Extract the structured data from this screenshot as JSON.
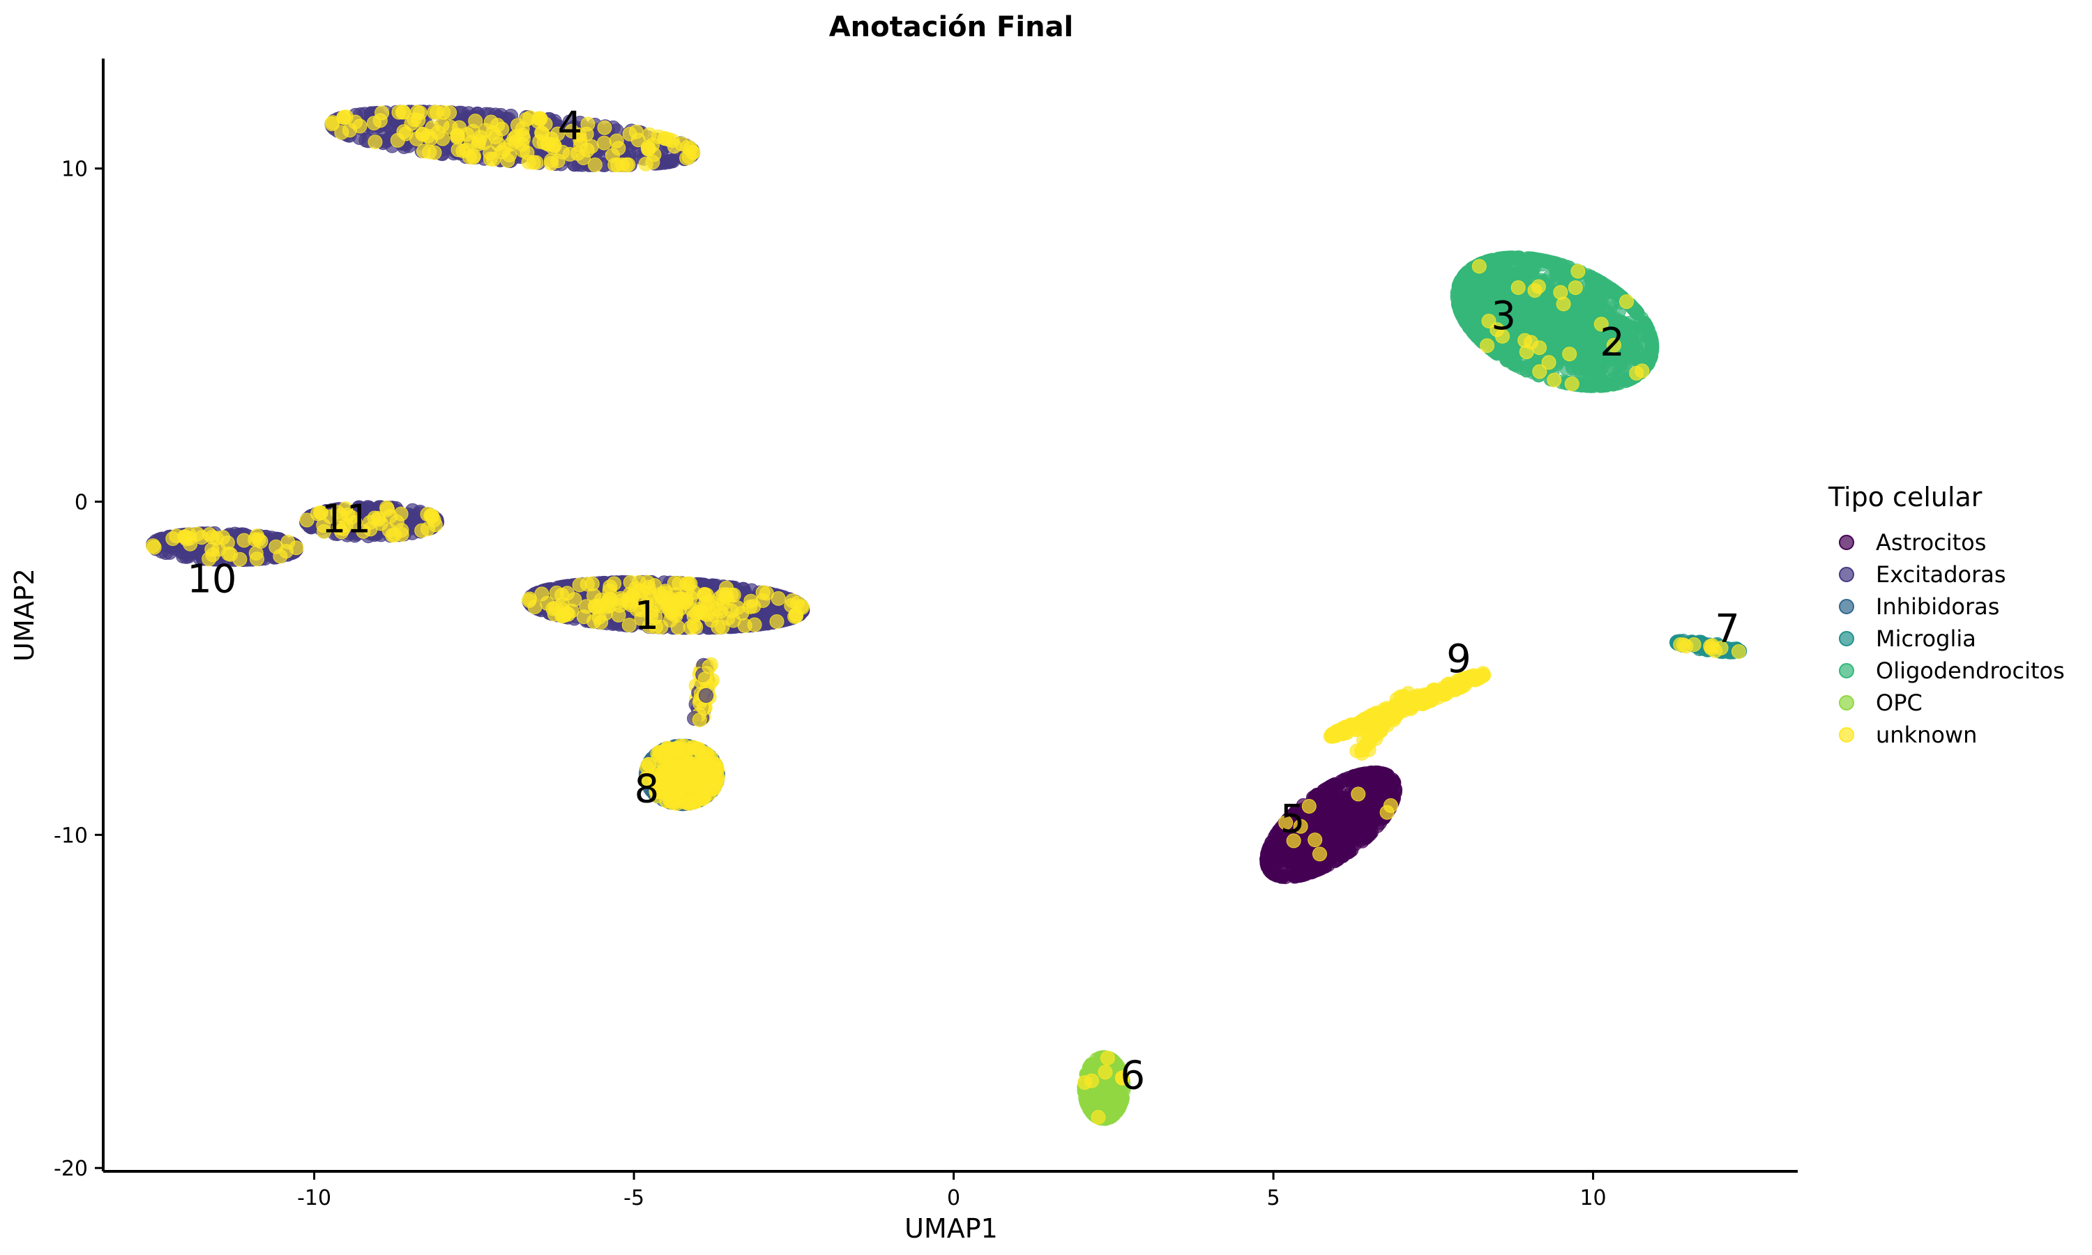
{
  "chart_data": {
    "type": "scatter",
    "title": "Anotación Final",
    "xlabel": "UMAP1",
    "ylabel": "UMAP2",
    "xlim": [
      -13.3,
      13.2
    ],
    "ylim": [
      -20.1,
      13.3
    ],
    "xticks": [
      -10,
      -5,
      0,
      5,
      10
    ],
    "xtick_labels": [
      "-10",
      "-5",
      "0",
      "5",
      "10"
    ],
    "yticks": [
      -20,
      -10,
      0,
      10
    ],
    "ytick_labels": [
      "-20",
      "-10",
      "0",
      "10"
    ],
    "grid": false,
    "legend": {
      "title": "Tipo celular",
      "placement": "right"
    },
    "series": [
      {
        "name": "Astrocitos",
        "color": "#440154"
      },
      {
        "name": "Excitadoras",
        "color": "#443983"
      },
      {
        "name": "Inhibidoras",
        "color": "#31688e"
      },
      {
        "name": "Microglia",
        "color": "#21918c"
      },
      {
        "name": "Oligodendrocitos",
        "color": "#35b779"
      },
      {
        "name": "OPC",
        "color": "#90d743"
      },
      {
        "name": "unknown",
        "color": "#fde725"
      }
    ],
    "clusters": [
      {
        "label": "1",
        "x": -4.8,
        "y": -3.4,
        "type": "Excitadoras"
      },
      {
        "label": "2",
        "x": 10.3,
        "y": 4.8,
        "type": "Oligodendrocitos"
      },
      {
        "label": "3",
        "x": 8.6,
        "y": 5.6,
        "type": "Oligodendrocitos"
      },
      {
        "label": "4",
        "x": -6.0,
        "y": 11.3,
        "type": "Excitadoras"
      },
      {
        "label": "5",
        "x": 5.3,
        "y": -9.5,
        "type": "Astrocitos"
      },
      {
        "label": "6",
        "x": 2.8,
        "y": -17.2,
        "type": "OPC"
      },
      {
        "label": "7",
        "x": 12.1,
        "y": -3.8,
        "type": "Microglia"
      },
      {
        "label": "8",
        "x": -4.8,
        "y": -8.6,
        "type": "Inhibidoras"
      },
      {
        "label": "9",
        "x": 7.9,
        "y": -4.7,
        "type": "unknown"
      },
      {
        "label": "10",
        "x": -11.6,
        "y": -2.3,
        "type": "Excitadoras"
      },
      {
        "label": "11",
        "x": -9.5,
        "y": -0.5,
        "type": "Excitadoras"
      }
    ]
  }
}
